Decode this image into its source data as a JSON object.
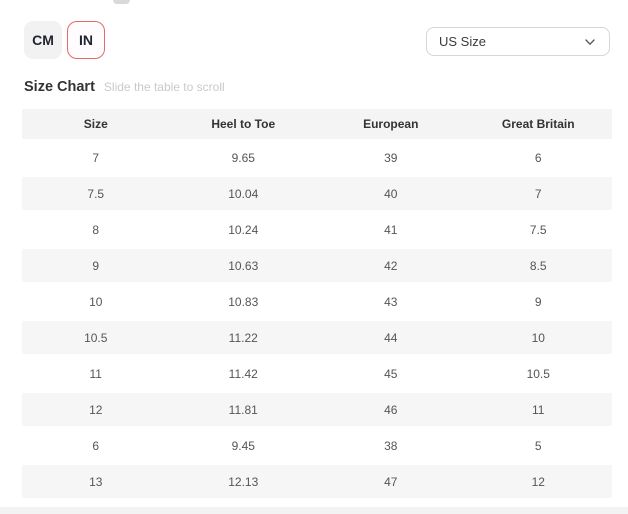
{
  "unit_toggle": {
    "cm_label": "CM",
    "in_label": "IN",
    "selected_unit": "IN"
  },
  "size_select": {
    "value": "US Size",
    "chevron_icon": "chevron-down"
  },
  "section": {
    "title": "Size Chart",
    "hint": "Slide the table to scroll"
  },
  "table": {
    "columns": [
      "Size",
      "Heel to Toe",
      "European",
      "Great Britain"
    ],
    "rows": [
      [
        "7",
        "9.65",
        "39",
        "6"
      ],
      [
        "7.5",
        "10.04",
        "40",
        "7"
      ],
      [
        "8",
        "10.24",
        "41",
        "7.5"
      ],
      [
        "9",
        "10.63",
        "42",
        "8.5"
      ],
      [
        "10",
        "10.83",
        "43",
        "9"
      ],
      [
        "10.5",
        "11.22",
        "44",
        "10"
      ],
      [
        "11",
        "11.42",
        "45",
        "10.5"
      ],
      [
        "12",
        "11.81",
        "46",
        "11"
      ],
      [
        "6",
        "9.45",
        "38",
        "5"
      ],
      [
        "13",
        "12.13",
        "47",
        "12"
      ]
    ]
  },
  "colors": {
    "accent_red": "#e26a6a",
    "btn_gray": "#f2f2f2",
    "header_bg": "#f4f4f4",
    "row_stripe": "#f6f6f6"
  }
}
